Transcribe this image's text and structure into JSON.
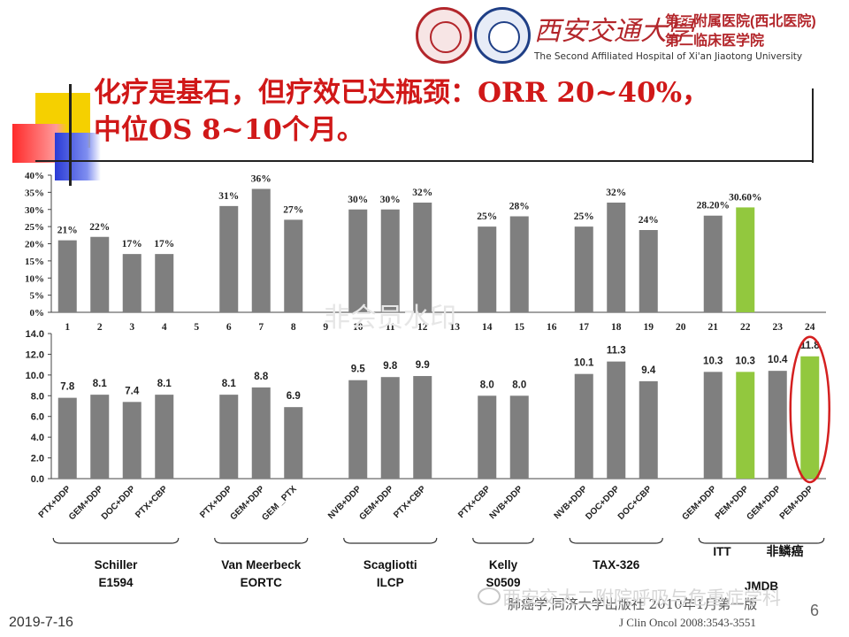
{
  "header": {
    "university": "西安交通大學",
    "hospital_line1": "第二附属医院(西北医院)",
    "hospital_line2": "第二临床医学院",
    "hospital_en": "The Second Affiliated Hospital of Xi'an Jiaotong University"
  },
  "title": {
    "line1": "化疗是基石，但疗效已达瓶颈：ORR 20~40%，",
    "line2": "中位OS 8~10个月。"
  },
  "colors": {
    "bar_gray": "#7f7f7f",
    "bar_green": "#92c83e",
    "title_red": "#d01818",
    "highlight_circle": "#d42020"
  },
  "chart_data": [
    {
      "type": "bar",
      "name": "orr",
      "categories": [
        "1",
        "2",
        "3",
        "4",
        "5",
        "6",
        "7",
        "8",
        "9",
        "10",
        "11",
        "12",
        "13",
        "14",
        "15",
        "16",
        "17",
        "18",
        "19",
        "20",
        "21",
        "22",
        "23",
        "24"
      ],
      "values": [
        21,
        22,
        17,
        17,
        null,
        31,
        36,
        27,
        null,
        30,
        30,
        32,
        null,
        25,
        28,
        null,
        25,
        32,
        24,
        null,
        28.2,
        30.6,
        null,
        null
      ],
      "labels": [
        "21%",
        "22%",
        "17%",
        "17%",
        "",
        "31%",
        "36%",
        "27%",
        "",
        "30%",
        "30%",
        "32%",
        "",
        "25%",
        "28%",
        "",
        "25%",
        "32%",
        "24%",
        "",
        "28.20%",
        "30.60%",
        "",
        ""
      ],
      "highlight_index": 21,
      "ylim": [
        0,
        40
      ],
      "yticks": [
        "0%",
        "5%",
        "10%",
        "15%",
        "20%",
        "25%",
        "30%",
        "35%",
        "40%"
      ],
      "grid": false
    },
    {
      "type": "bar",
      "name": "median_os",
      "categories": [
        "PTX+DDP",
        "GEM+DDP",
        "DOC+DDP",
        "PTX+CBP",
        "",
        "PTX+DDP",
        "GEM+DDP",
        "GEM _PTX",
        "",
        "NVB+DDP",
        "GEM+DDP",
        "PTX+CBP",
        "",
        "PTX+CBP",
        "NVB+DDP",
        "",
        "NVB+DDP",
        "DOC+DDP",
        "DOC+CBP",
        "",
        "GEM+DDP",
        "PEM+DDP",
        "GEM+DDP",
        "PEM+DDP"
      ],
      "values": [
        7.8,
        8.1,
        7.4,
        8.1,
        null,
        8.1,
        8.8,
        6.9,
        null,
        9.5,
        9.8,
        9.9,
        null,
        8.0,
        8.0,
        null,
        10.1,
        11.3,
        9.4,
        null,
        10.3,
        10.3,
        10.4,
        11.8
      ],
      "labels": [
        "7.8",
        "8.1",
        "7.4",
        "8.1",
        "",
        "8.1",
        "8.8",
        "6.9",
        "",
        "9.5",
        "9.8",
        "9.9",
        "",
        "8.0",
        "8.0",
        "",
        "10.1",
        "11.3",
        "9.4",
        "",
        "10.3",
        "10.3",
        "10.4",
        "11.8"
      ],
      "green_indices": [
        21,
        23
      ],
      "circled_index": 23,
      "ylim": [
        0,
        14
      ],
      "yticks": [
        "0.0",
        "2.0",
        "4.0",
        "6.0",
        "8.0",
        "10.0",
        "12.0",
        "14.0"
      ],
      "grid": false
    }
  ],
  "studies": [
    {
      "line1": "Schiller",
      "line2": "E1594"
    },
    {
      "line1": "Van Meerbeck",
      "line2": "EORTC"
    },
    {
      "line1": "Scagliotti",
      "line2": "ILCP"
    },
    {
      "line1": "Kelly",
      "line2": "S0509"
    },
    {
      "line1": "TAX-326",
      "line2": ""
    },
    {
      "line1": "JMDB",
      "line2": ""
    }
  ],
  "jmdb_sublabels": {
    "itt": "ITT",
    "nonsq": "非鳞癌"
  },
  "footer": {
    "date": "2019-7-16",
    "page": "6",
    "ref_book": "肺癌学,同济大学出版社 2010年1月第一版",
    "ref_journal": "J Clin Oncol 2008:3543-3551",
    "watermark": "西安交大二附院呼吸与危重症学科",
    "watermark_center": "非会员水印"
  }
}
